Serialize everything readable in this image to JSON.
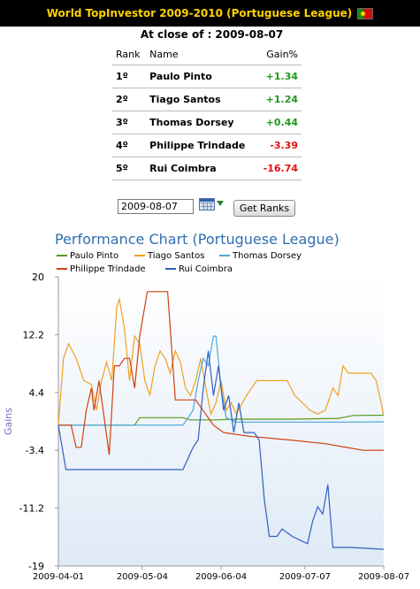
{
  "header": {
    "title": "World TopInvestor 2009-2010 (Portuguese League)",
    "flag_icon": "portugal-flag-icon"
  },
  "close": {
    "label": "At close of :",
    "date": "2009-08-07"
  },
  "ranking": {
    "columns": [
      "Rank",
      "Name",
      "Gain%"
    ],
    "rows": [
      {
        "rank": "1º",
        "name": "Paulo Pinto",
        "gain": "+1.34",
        "color": "#1e9a1e"
      },
      {
        "rank": "2º",
        "name": "Tiago Santos",
        "gain": "+1.24",
        "color": "#1e9a1e"
      },
      {
        "rank": "3º",
        "name": "Thomas Dorsey",
        "gain": "+0.44",
        "color": "#1e9a1e"
      },
      {
        "rank": "4º",
        "name": "Philippe Trindade",
        "gain": "-3.39",
        "color": "#e01010"
      },
      {
        "rank": "5º",
        "name": "Rui Coimbra",
        "gain": "-16.74",
        "color": "#e01010"
      }
    ]
  },
  "controls": {
    "date_value": "2009-08-07",
    "calendar_icon": "calendar-icon",
    "button_label": "Get Ranks"
  },
  "chart_data": {
    "type": "line",
    "title": "Performance Chart (Portuguese League)",
    "ylabel": "Gains",
    "xlabel": "",
    "ylim": [
      -19,
      20
    ],
    "yticks": [
      20,
      12.2,
      4.4,
      -3.4,
      -11.2,
      -19
    ],
    "xticks": [
      "2009-04-01",
      "2009-05-04",
      "2009-06-04",
      "2009-07-07",
      "2009-08-07"
    ],
    "x_range": [
      "2009-04-01",
      "2009-08-07"
    ],
    "grid": false,
    "legend_position": "top-left",
    "series": [
      {
        "name": "Paulo Pinto",
        "color": "#5a9a1a",
        "points": [
          [
            "2009-04-01",
            0
          ],
          [
            "2009-05-01",
            0
          ],
          [
            "2009-05-03",
            1
          ],
          [
            "2009-05-20",
            1
          ],
          [
            "2009-05-23",
            0.7
          ],
          [
            "2009-06-01",
            0.7
          ],
          [
            "2009-06-10",
            0.8
          ],
          [
            "2009-07-01",
            0.8
          ],
          [
            "2009-07-20",
            0.9
          ],
          [
            "2009-07-26",
            1.3
          ],
          [
            "2009-08-07",
            1.34
          ]
        ]
      },
      {
        "name": "Tiago Santos",
        "color": "#f0a020",
        "points": [
          [
            "2009-04-01",
            0
          ],
          [
            "2009-04-03",
            9
          ],
          [
            "2009-04-05",
            11
          ],
          [
            "2009-04-08",
            9
          ],
          [
            "2009-04-11",
            6
          ],
          [
            "2009-04-14",
            5.5
          ],
          [
            "2009-04-16",
            2
          ],
          [
            "2009-04-18",
            6
          ],
          [
            "2009-04-20",
            8.5
          ],
          [
            "2009-04-22",
            6
          ],
          [
            "2009-04-24",
            16
          ],
          [
            "2009-04-25",
            17
          ],
          [
            "2009-04-27",
            13
          ],
          [
            "2009-04-29",
            6
          ],
          [
            "2009-05-01",
            12
          ],
          [
            "2009-05-03",
            11
          ],
          [
            "2009-05-05",
            6
          ],
          [
            "2009-05-07",
            4
          ],
          [
            "2009-05-09",
            8
          ],
          [
            "2009-05-11",
            10
          ],
          [
            "2009-05-13",
            9
          ],
          [
            "2009-05-15",
            7
          ],
          [
            "2009-05-17",
            10
          ],
          [
            "2009-05-19",
            8.5
          ],
          [
            "2009-05-21",
            5
          ],
          [
            "2009-05-23",
            4
          ],
          [
            "2009-05-25",
            6
          ],
          [
            "2009-05-27",
            9
          ],
          [
            "2009-05-29",
            5
          ],
          [
            "2009-05-31",
            1.5
          ],
          [
            "2009-06-02",
            3
          ],
          [
            "2009-06-04",
            6
          ],
          [
            "2009-06-06",
            2
          ],
          [
            "2009-06-08",
            3
          ],
          [
            "2009-06-10",
            1.5
          ],
          [
            "2009-06-14",
            4
          ],
          [
            "2009-06-18",
            6
          ],
          [
            "2009-06-22",
            6
          ],
          [
            "2009-06-26",
            6
          ],
          [
            "2009-06-30",
            6
          ],
          [
            "2009-07-03",
            4
          ],
          [
            "2009-07-06",
            3
          ],
          [
            "2009-07-09",
            2
          ],
          [
            "2009-07-12",
            1.5
          ],
          [
            "2009-07-15",
            2
          ],
          [
            "2009-07-18",
            5
          ],
          [
            "2009-07-20",
            4
          ],
          [
            "2009-07-22",
            8
          ],
          [
            "2009-07-24",
            7
          ],
          [
            "2009-07-28",
            7
          ],
          [
            "2009-08-02",
            7
          ],
          [
            "2009-08-04",
            6
          ],
          [
            "2009-08-06",
            3
          ],
          [
            "2009-08-07",
            1.24
          ]
        ]
      },
      {
        "name": "Thomas Dorsey",
        "color": "#4aa8e0",
        "points": [
          [
            "2009-04-01",
            0
          ],
          [
            "2009-05-20",
            0
          ],
          [
            "2009-05-24",
            2
          ],
          [
            "2009-05-26",
            6
          ],
          [
            "2009-05-28",
            9
          ],
          [
            "2009-05-30",
            8
          ],
          [
            "2009-06-01",
            12
          ],
          [
            "2009-06-02",
            12
          ],
          [
            "2009-06-04",
            5
          ],
          [
            "2009-06-06",
            1
          ],
          [
            "2009-06-10",
            0.4
          ],
          [
            "2009-06-30",
            0.4
          ],
          [
            "2009-07-20",
            0.4
          ],
          [
            "2009-08-07",
            0.44
          ]
        ]
      },
      {
        "name": "Philippe Trindade",
        "color": "#d04010",
        "points": [
          [
            "2009-04-01",
            0
          ],
          [
            "2009-04-06",
            0
          ],
          [
            "2009-04-08",
            -3
          ],
          [
            "2009-04-10",
            -3
          ],
          [
            "2009-04-12",
            2
          ],
          [
            "2009-04-14",
            5
          ],
          [
            "2009-04-15",
            2
          ],
          [
            "2009-04-17",
            6
          ],
          [
            "2009-04-19",
            1
          ],
          [
            "2009-04-21",
            -4
          ],
          [
            "2009-04-23",
            8
          ],
          [
            "2009-04-25",
            8
          ],
          [
            "2009-04-27",
            9
          ],
          [
            "2009-04-29",
            9
          ],
          [
            "2009-05-01",
            5
          ],
          [
            "2009-05-03",
            12
          ],
          [
            "2009-05-06",
            18
          ],
          [
            "2009-05-14",
            18
          ],
          [
            "2009-05-17",
            3.4
          ],
          [
            "2009-05-25",
            3.4
          ],
          [
            "2009-06-01",
            0
          ],
          [
            "2009-06-05",
            -1
          ],
          [
            "2009-06-15",
            -1.5
          ],
          [
            "2009-07-01",
            -2
          ],
          [
            "2009-07-15",
            -2.5
          ],
          [
            "2009-07-30",
            -3.4
          ],
          [
            "2009-08-07",
            -3.39
          ]
        ]
      },
      {
        "name": "Rui Coimbra",
        "color": "#3060c0",
        "points": [
          [
            "2009-04-01",
            0
          ],
          [
            "2009-04-04",
            -6
          ],
          [
            "2009-04-10",
            -6
          ],
          [
            "2009-05-15",
            -6
          ],
          [
            "2009-05-20",
            -6
          ],
          [
            "2009-05-24",
            -3
          ],
          [
            "2009-05-26",
            -2
          ],
          [
            "2009-05-28",
            5
          ],
          [
            "2009-05-30",
            10
          ],
          [
            "2009-06-01",
            4
          ],
          [
            "2009-06-03",
            8
          ],
          [
            "2009-06-05",
            2
          ],
          [
            "2009-06-07",
            4
          ],
          [
            "2009-06-09",
            -1
          ],
          [
            "2009-06-11",
            3
          ],
          [
            "2009-06-13",
            -1
          ],
          [
            "2009-06-15",
            -1
          ],
          [
            "2009-06-17",
            -1
          ],
          [
            "2009-06-19",
            -2
          ],
          [
            "2009-06-21",
            -10
          ],
          [
            "2009-06-23",
            -15
          ],
          [
            "2009-06-26",
            -15
          ],
          [
            "2009-06-28",
            -14
          ],
          [
            "2009-07-02",
            -15
          ],
          [
            "2009-07-05",
            -15.5
          ],
          [
            "2009-07-08",
            -16
          ],
          [
            "2009-07-10",
            -13
          ],
          [
            "2009-07-12",
            -11
          ],
          [
            "2009-07-14",
            -12
          ],
          [
            "2009-07-16",
            -8
          ],
          [
            "2009-07-18",
            -16.5
          ],
          [
            "2009-07-25",
            -16.5
          ],
          [
            "2009-08-07",
            -16.74
          ]
        ]
      }
    ]
  }
}
